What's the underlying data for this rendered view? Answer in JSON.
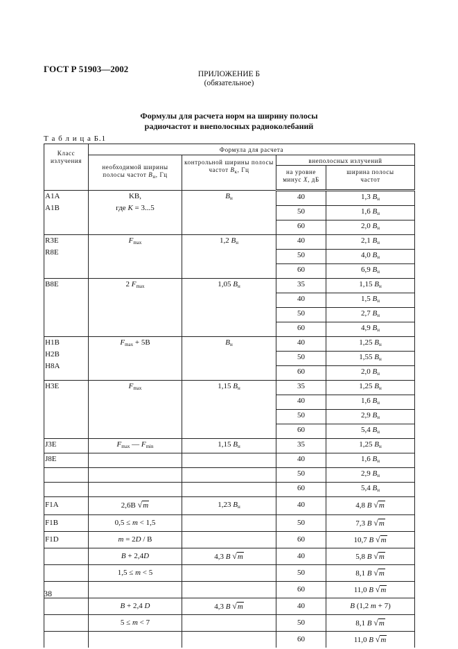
{
  "header": {
    "doc_id": "ГОСТ Р 51903—2002",
    "appendix": "ПРИЛОЖЕНИЕ Б",
    "appendix_status": "(обязательное)",
    "title_line1": "Формулы для расчета норм на ширину полосы",
    "title_line2": "радиочастот и внеполосных радиоколебаний",
    "table_label": "Т а б л и ц а  Б.1"
  },
  "table": {
    "headers": {
      "class": "Класс излучения",
      "formula": "Формула для расчета",
      "necessary": [
        {
          "t": "необходимой ширины полосы частот "
        },
        {
          "i": "B"
        },
        {
          "sub": "н"
        },
        {
          "t": ", Гц"
        }
      ],
      "control": [
        {
          "t": "контрольной ширины полосы частот "
        },
        {
          "i": "B"
        },
        {
          "sub": "к"
        },
        {
          "t": ", Гц"
        }
      ],
      "out_of_band": "внеполосных излучений",
      "level": [
        {
          "t": "на уровне минус "
        },
        {
          "i": "X"
        },
        {
          "t": ", дБ"
        }
      ],
      "width": "ширина полосы частот"
    },
    "groups": [
      {
        "cls": [
          "A1A",
          "A1B"
        ],
        "nec": [
          [
            {
              "t": "KB,"
            }
          ],
          [
            {
              "t": "где "
            },
            {
              "i": "K"
            },
            {
              "t": " = 3...5"
            }
          ]
        ],
        "ctrl": [
          [
            {
              "i": "B"
            },
            {
              "sub": "н"
            }
          ]
        ],
        "rows": [
          [
            "40",
            [
              {
                "t": "1,3 "
              },
              {
                "i": "B"
              },
              {
                "sub": "н"
              }
            ]
          ],
          [
            "50",
            [
              {
                "t": "1,6 "
              },
              {
                "i": "B"
              },
              {
                "sub": "н"
              }
            ]
          ],
          [
            "60",
            [
              {
                "t": "2,0 "
              },
              {
                "i": "B"
              },
              {
                "sub": "н"
              }
            ]
          ]
        ]
      },
      {
        "cls": [
          "R3E",
          "R8E"
        ],
        "nec": [
          [
            {
              "i": "F"
            },
            {
              "sub": "max"
            }
          ]
        ],
        "ctrl": [
          [
            {
              "t": "1,2 "
            },
            {
              "i": "B"
            },
            {
              "sub": "н"
            }
          ]
        ],
        "rows": [
          [
            "40",
            [
              {
                "t": "2,1 "
              },
              {
                "i": "B"
              },
              {
                "sub": "н"
              }
            ]
          ],
          [
            "50",
            [
              {
                "t": "4,0 "
              },
              {
                "i": "B"
              },
              {
                "sub": "н"
              }
            ]
          ],
          [
            "60",
            [
              {
                "t": "6,9 "
              },
              {
                "i": "B"
              },
              {
                "sub": "н"
              }
            ]
          ]
        ]
      },
      {
        "cls": [
          "B8E"
        ],
        "nec": [
          [
            {
              "t": "2 "
            },
            {
              "i": "F"
            },
            {
              "sub": "max"
            }
          ]
        ],
        "ctrl": [
          [
            {
              "t": "1,05 "
            },
            {
              "i": "B"
            },
            {
              "sub": "н"
            }
          ]
        ],
        "rows": [
          [
            "35",
            [
              {
                "t": "1,15 "
              },
              {
                "i": "B"
              },
              {
                "sub": "н"
              }
            ]
          ],
          [
            "40",
            [
              {
                "t": "1,5 "
              },
              {
                "i": "B"
              },
              {
                "sub": "н"
              }
            ]
          ],
          [
            "50",
            [
              {
                "t": "2,7 "
              },
              {
                "i": "B"
              },
              {
                "sub": "н"
              }
            ]
          ],
          [
            "60",
            [
              {
                "t": "4,9 "
              },
              {
                "i": "B"
              },
              {
                "sub": "н"
              }
            ]
          ]
        ]
      },
      {
        "cls": [
          "H1B",
          "H2B",
          "H8A"
        ],
        "nec": [
          [
            {
              "i": "F"
            },
            {
              "sub": "max"
            },
            {
              "t": " + 5B"
            }
          ]
        ],
        "ctrl": [
          [
            {
              "i": "B"
            },
            {
              "sub": "н"
            }
          ]
        ],
        "rows": [
          [
            "40",
            [
              {
                "t": "1,25 "
              },
              {
                "i": "B"
              },
              {
                "sub": "н"
              }
            ]
          ],
          [
            "50",
            [
              {
                "t": "1,55 "
              },
              {
                "i": "B"
              },
              {
                "sub": "н"
              }
            ]
          ],
          [
            "60",
            [
              {
                "t": "2,0 "
              },
              {
                "i": "B"
              },
              {
                "sub": "н"
              }
            ]
          ]
        ]
      },
      {
        "cls": [
          "H3E"
        ],
        "nec": [
          [
            {
              "i": "F"
            },
            {
              "sub": "max"
            }
          ]
        ],
        "ctrl": [
          [
            {
              "t": "1,15 "
            },
            {
              "i": "B"
            },
            {
              "sub": "н"
            }
          ]
        ],
        "rows": [
          [
            "35",
            [
              {
                "t": "1,25 "
              },
              {
                "i": "B"
              },
              {
                "sub": "н"
              }
            ]
          ],
          [
            "40",
            [
              {
                "t": "1,6 "
              },
              {
                "i": "B"
              },
              {
                "sub": "н"
              }
            ]
          ],
          [
            "50",
            [
              {
                "t": "2,9 "
              },
              {
                "i": "B"
              },
              {
                "sub": "н"
              }
            ]
          ],
          [
            "60",
            [
              {
                "t": "5,4 "
              },
              {
                "i": "B"
              },
              {
                "sub": "н"
              }
            ]
          ]
        ]
      },
      {
        "cls": [
          "J3E"
        ],
        "nec": [
          [
            {
              "i": "F"
            },
            {
              "sub": "max"
            },
            {
              "t": " — "
            },
            {
              "i": "F"
            },
            {
              "sub": "min"
            }
          ]
        ],
        "ctrl": [
          [
            {
              "t": "1,15 "
            },
            {
              "i": "B"
            },
            {
              "sub": "н"
            }
          ]
        ],
        "rows": [
          [
            "35",
            [
              {
                "t": "1,25 "
              },
              {
                "i": "B"
              },
              {
                "sub": "н"
              }
            ]
          ]
        ]
      },
      {
        "cls": [
          "J8E"
        ],
        "nec": [],
        "ctrl": [],
        "rows": [
          [
            "40",
            [
              {
                "t": "1,6 "
              },
              {
                "i": "B"
              },
              {
                "sub": "н"
              }
            ]
          ]
        ]
      },
      {
        "cls": [],
        "nec": [],
        "ctrl": [],
        "rows": [
          [
            "50",
            [
              {
                "t": "2,9 "
              },
              {
                "i": "B"
              },
              {
                "sub": "н"
              }
            ]
          ]
        ]
      },
      {
        "cls": [],
        "nec": [],
        "ctrl": [],
        "rows": [
          [
            "60",
            [
              {
                "t": "5,4 "
              },
              {
                "i": "B"
              },
              {
                "sub": "н"
              }
            ]
          ]
        ]
      },
      {
        "f": true,
        "cls": [
          "F1A"
        ],
        "nec": [
          [
            {
              "t": "2,6B "
            },
            {
              "sqrt": "m"
            }
          ]
        ],
        "ctrl": [
          [
            {
              "t": "1,23 "
            },
            {
              "i": "B"
            },
            {
              "sub": "н"
            }
          ]
        ],
        "rows": [
          [
            "40",
            [
              {
                "t": "4,8 "
              },
              {
                "i": "B"
              },
              {
                "t": " "
              },
              {
                "sqrt": "m"
              }
            ]
          ]
        ]
      },
      {
        "f": true,
        "cls": [
          "F1B"
        ],
        "nec": [
          [
            {
              "t": "0,5 ≤ "
            },
            {
              "i": "m"
            },
            {
              "t": " < 1,5"
            }
          ]
        ],
        "ctrl": [],
        "rows": [
          [
            "50",
            [
              {
                "t": "7,3 "
              },
              {
                "i": "B"
              },
              {
                "t": " "
              },
              {
                "sqrt": "m"
              }
            ]
          ]
        ]
      },
      {
        "f": true,
        "cls": [
          "F1D"
        ],
        "nec": [
          [
            {
              "i": "m"
            },
            {
              "t": " = 2"
            },
            {
              "i": "D"
            },
            {
              "t": " / B"
            }
          ]
        ],
        "ctrl": [],
        "rows": [
          [
            "60",
            [
              {
                "t": "10,7 "
              },
              {
                "i": "B"
              },
              {
                "t": " "
              },
              {
                "sqrt": "m"
              }
            ]
          ]
        ]
      },
      {
        "f": true,
        "cls": [],
        "nec": [
          [
            {
              "i": "B"
            },
            {
              "t": " + 2,4"
            },
            {
              "i": "D"
            }
          ]
        ],
        "ctrl": [
          [
            {
              "t": "4,3 "
            },
            {
              "i": "B"
            },
            {
              "t": " "
            },
            {
              "sqrt": "m"
            }
          ]
        ],
        "rows": [
          [
            "40",
            [
              {
                "t": "5,8 "
              },
              {
                "i": "B"
              },
              {
                "t": " "
              },
              {
                "sqrt": "m"
              }
            ]
          ]
        ]
      },
      {
        "f": true,
        "cls": [],
        "nec": [
          [
            {
              "t": "1,5 ≤ "
            },
            {
              "i": "m"
            },
            {
              "t": " < 5"
            }
          ]
        ],
        "ctrl": [],
        "rows": [
          [
            "50",
            [
              {
                "t": "8,1 "
              },
              {
                "i": "B"
              },
              {
                "t": " "
              },
              {
                "sqrt": "m"
              }
            ]
          ]
        ]
      },
      {
        "f": true,
        "cls": [],
        "nec": [],
        "ctrl": [],
        "rows": [
          [
            "60",
            [
              {
                "t": "11,0 "
              },
              {
                "i": "B"
              },
              {
                "t": " "
              },
              {
                "sqrt": "m"
              }
            ]
          ]
        ]
      },
      {
        "f": true,
        "cls": [],
        "nec": [
          [
            {
              "i": "B"
            },
            {
              "t": " + 2,4 "
            },
            {
              "i": "D"
            }
          ]
        ],
        "ctrl": [
          [
            {
              "t": "4,3 "
            },
            {
              "i": "B"
            },
            {
              "t": " "
            },
            {
              "sqrt": "m"
            }
          ]
        ],
        "rows": [
          [
            "40",
            [
              {
                "i": "B"
              },
              {
                "t": " (1,2 "
              },
              {
                "i": "m"
              },
              {
                "t": " + 7)"
              }
            ]
          ]
        ]
      },
      {
        "f": true,
        "cls": [],
        "nec": [
          [
            {
              "t": "5 ≤ "
            },
            {
              "i": "m"
            },
            {
              "t": " < 7"
            }
          ]
        ],
        "ctrl": [],
        "rows": [
          [
            "50",
            [
              {
                "t": "8,1 "
              },
              {
                "i": "B"
              },
              {
                "t": " "
              },
              {
                "sqrt": "m"
              }
            ]
          ]
        ]
      },
      {
        "f": true,
        "last": true,
        "cls": [],
        "nec": [],
        "ctrl": [],
        "rows": [
          [
            "60",
            [
              {
                "t": "11,0 "
              },
              {
                "i": "B"
              },
              {
                "t": " "
              },
              {
                "sqrt": "m"
              }
            ]
          ]
        ]
      }
    ]
  },
  "footer": {
    "page_number": "38"
  }
}
